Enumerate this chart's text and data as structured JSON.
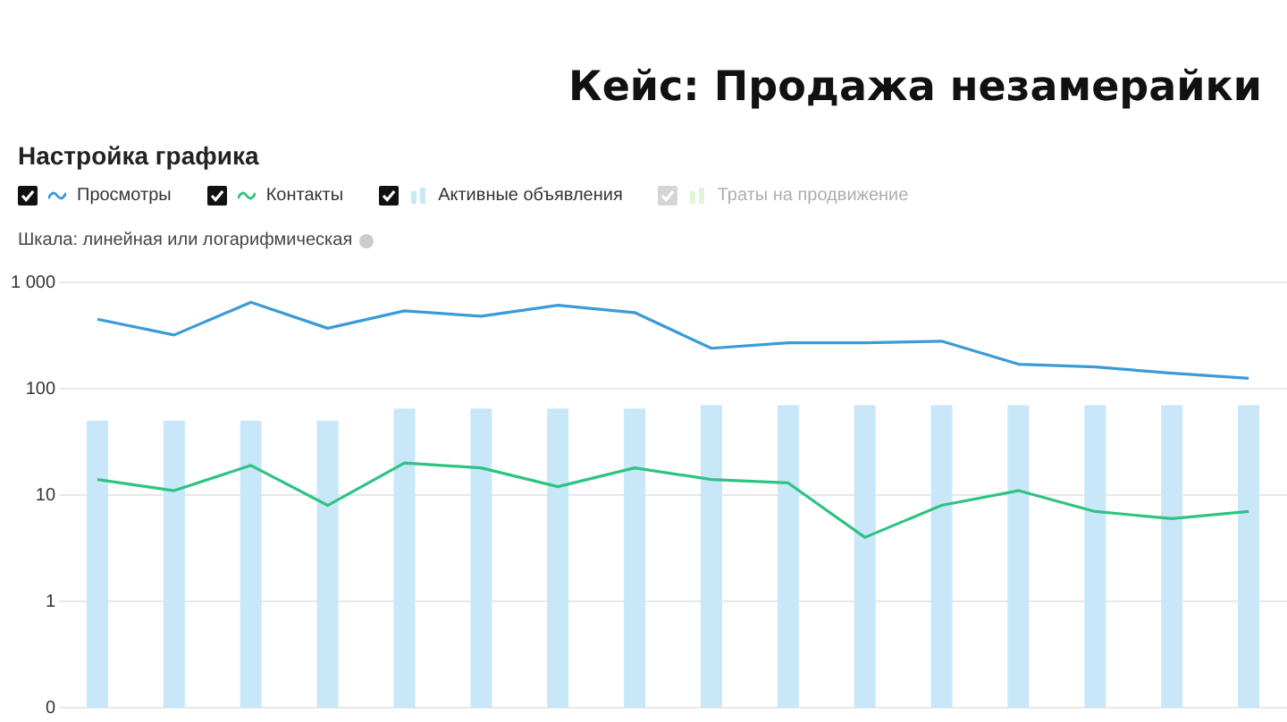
{
  "chart_data": {
    "type": "line",
    "title": "Кейс: Продажа незамерайки",
    "subtitle": "Настройка графика",
    "annotations": [
      "Шкала: линейная или логарифмическая"
    ],
    "categories": [
      null,
      null,
      null,
      null,
      null,
      null,
      null,
      null,
      null,
      null,
      null,
      null,
      null,
      null,
      null,
      null
    ],
    "series": [
      {
        "name": "Просмотры",
        "color": "#3a9bd8",
        "values": [
          450,
          320,
          650,
          370,
          540,
          480,
          610,
          520,
          240,
          270,
          270,
          280,
          170,
          160,
          140,
          125
        ]
      },
      {
        "name": "Контакты",
        "color": "#2fc383",
        "values": [
          14,
          11,
          19,
          8,
          20,
          18,
          12,
          18,
          14,
          13,
          4,
          8,
          11,
          7,
          6,
          7
        ]
      },
      {
        "name": "Активные объявления",
        "type": "bar",
        "color": "#c8e8f9",
        "values": [
          50,
          50,
          50,
          50,
          65,
          65,
          65,
          65,
          70,
          70,
          70,
          70,
          70,
          70,
          70,
          70
        ]
      },
      {
        "name": "Траты на продвижение",
        "type": "bar",
        "color": "#b6e2a3",
        "values": [
          null,
          null,
          null,
          null,
          null,
          null,
          null,
          null,
          null,
          null,
          null,
          null,
          null,
          null,
          null,
          null
        ]
      }
    ],
    "log": "y",
    "ylim": [
      0.1,
      1000
    ],
    "yticks": [
      {
        "value": 0.1,
        "label": "0"
      },
      1,
      10,
      100,
      {
        "value": 1000,
        "label": "1 000"
      }
    ],
    "grid": "y",
    "legend": "top left",
    "marker": "none",
    "tick_labels": "y"
  }
}
